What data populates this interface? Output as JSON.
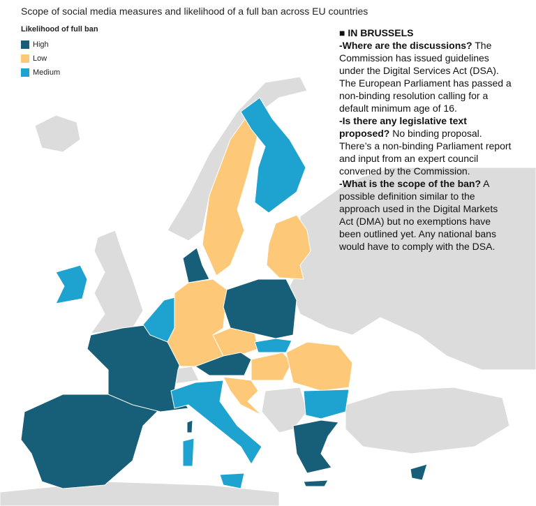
{
  "title": "Scope of social media measures and likelihood of a full ban across EU countries",
  "legend": {
    "title": "Likelihood of full ban",
    "items": [
      {
        "label": "High",
        "color": "#175e78"
      },
      {
        "label": "Low",
        "color": "#fdc877"
      },
      {
        "label": "Medium",
        "color": "#1ea2cf"
      }
    ]
  },
  "panel": {
    "heading": "■ IN BRUSSELS",
    "paragraphs": [
      {
        "question": "-Where are the discussions?",
        "answer": "The Commission has issued guidelines under the Digital Services Act (DSA). The European Parliament has passed a non-binding resolution calling for a default minimum age of 16."
      },
      {
        "question": "-Is there any legislative text proposed?",
        "answer": "No binding proposal. There’s a non-binding Parliament report and input from an expert council convened by the Commission."
      },
      {
        "question": "-What is the scope of the ban?",
        "answer": "A possible definition similar to the approach used in the Digital Markets Act (DMA) but no exemptions have been outlined yet. Any national bans would have to comply with the DSA."
      }
    ]
  }
}
